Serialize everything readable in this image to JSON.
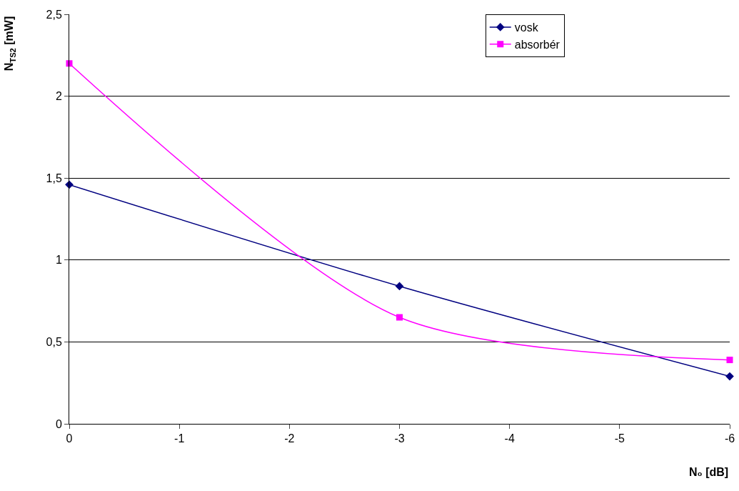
{
  "chart_data": {
    "type": "line",
    "xlabel": "N₀ [dB]",
    "ylabel": "N$_{TS2}$ [mW]",
    "x": [
      0,
      -3,
      -6
    ],
    "series": [
      {
        "name": "vosk",
        "color": "#000080",
        "marker": "diamond",
        "values": [
          1.46,
          0.84,
          0.29
        ]
      },
      {
        "name": "absorbér",
        "color": "#ff00ff",
        "marker": "square",
        "values": [
          2.2,
          0.65,
          0.39
        ]
      }
    ],
    "xlim": [
      0,
      -6
    ],
    "xticks": [
      0,
      -1,
      -2,
      -3,
      -4,
      -5,
      -6
    ],
    "ylim": [
      0,
      2.5
    ],
    "yticks": [
      0,
      {
        "value": 0.5,
        "label": "0,5"
      },
      1,
      {
        "value": 1.5,
        "label": "1,5"
      },
      2,
      {
        "value": 2.5,
        "label": "2,5"
      }
    ],
    "grid": "y",
    "legend": "top right"
  }
}
